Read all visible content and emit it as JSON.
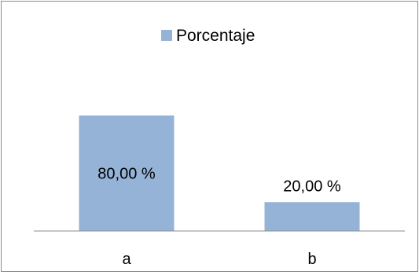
{
  "chart_data": {
    "type": "bar",
    "categories": [
      "a",
      "b"
    ],
    "series": [
      {
        "name": "Porcentaje",
        "values": [
          80.0,
          20.0
        ],
        "color": "#95b3d7"
      }
    ],
    "data_labels": [
      "80,00 %",
      "20,00 %"
    ],
    "title": "",
    "xlabel": "",
    "ylabel": "",
    "ylim": [
      0,
      100
    ],
    "grid": false,
    "legend_position": "top"
  }
}
